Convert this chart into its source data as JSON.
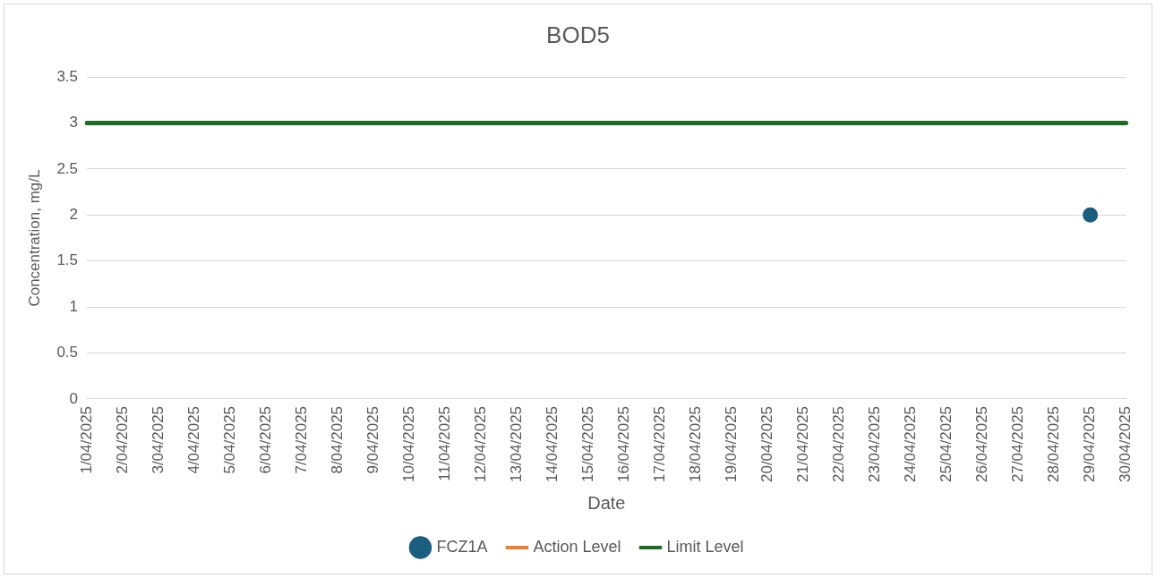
{
  "chart_data": {
    "type": "line",
    "title": "BOD5",
    "xlabel": "Date",
    "ylabel": "Concentration, mg/L",
    "categories": [
      "1/04/2025",
      "2/04/2025",
      "3/04/2025",
      "4/04/2025",
      "5/04/2025",
      "6/04/2025",
      "7/04/2025",
      "8/04/2025",
      "9/04/2025",
      "10/04/2025",
      "11/04/2025",
      "12/04/2025",
      "13/04/2025",
      "14/04/2025",
      "15/04/2025",
      "16/04/2025",
      "17/04/2025",
      "18/04/2025",
      "19/04/2025",
      "20/04/2025",
      "21/04/2025",
      "22/04/2025",
      "23/04/2025",
      "24/04/2025",
      "25/04/2025",
      "26/04/2025",
      "27/04/2025",
      "28/04/2025",
      "29/04/2025",
      "30/04/2025"
    ],
    "series": [
      {
        "name": "FCZ1A",
        "color": "#1b5e80",
        "marker": "circle",
        "values": [
          null,
          null,
          null,
          null,
          null,
          null,
          null,
          null,
          null,
          null,
          null,
          null,
          null,
          null,
          null,
          null,
          null,
          null,
          null,
          null,
          null,
          null,
          null,
          null,
          null,
          null,
          null,
          null,
          2,
          null
        ]
      },
      {
        "name": "Action Level",
        "color": "#ed7d31",
        "marker": "none",
        "values": [
          null,
          null,
          null,
          null,
          null,
          null,
          null,
          null,
          null,
          null,
          null,
          null,
          null,
          null,
          null,
          null,
          null,
          null,
          null,
          null,
          null,
          null,
          null,
          null,
          null,
          null,
          null,
          null,
          null,
          null
        ]
      },
      {
        "name": "Limit Level",
        "color": "#1e6b24",
        "marker": "none",
        "values": [
          3,
          3,
          3,
          3,
          3,
          3,
          3,
          3,
          3,
          3,
          3,
          3,
          3,
          3,
          3,
          3,
          3,
          3,
          3,
          3,
          3,
          3,
          3,
          3,
          3,
          3,
          3,
          3,
          3,
          3
        ]
      }
    ],
    "ylim": [
      0,
      3.5
    ],
    "yticks": [
      0,
      0.5,
      1,
      1.5,
      2,
      2.5,
      3,
      3.5
    ],
    "grid": "y",
    "legend": "bottom",
    "line_style": "solid"
  }
}
